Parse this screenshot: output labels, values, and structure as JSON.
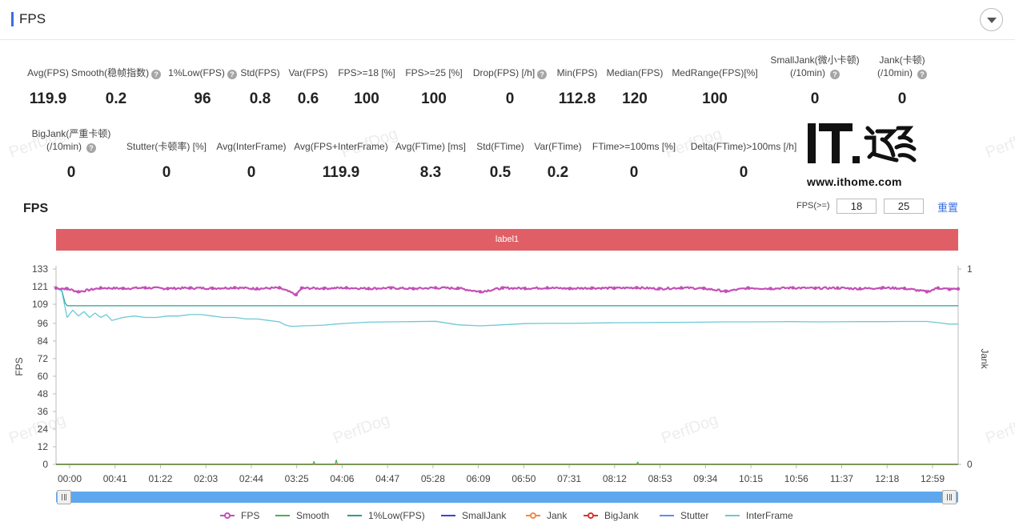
{
  "panel": {
    "title": "FPS"
  },
  "metrics_row1": [
    {
      "label": "Avg(FPS)",
      "value": "119.9"
    },
    {
      "label": "Smooth(稳帧指数)",
      "value": "0.2"
    },
    {
      "label": "1%Low(FPS)",
      "value": "96"
    },
    {
      "label": "Std(FPS)",
      "value": "0.8"
    },
    {
      "label": "Var(FPS)",
      "value": "0.6"
    },
    {
      "label": "FPS>=18 [%]",
      "value": "100"
    },
    {
      "label": "FPS>=25 [%]",
      "value": "100"
    },
    {
      "label": "Drop(FPS) [/h]",
      "value": "0"
    },
    {
      "label": "Min(FPS)",
      "value": "112.8"
    },
    {
      "label": "Median(FPS)",
      "value": "120"
    },
    {
      "label": "MedRange(FPS)[%]",
      "value": "100"
    },
    {
      "label": "SmallJank(微小卡顿)",
      "label2": "(/10min)",
      "value": "0"
    },
    {
      "label": "Jank(卡顿)",
      "label2": "(/10min)",
      "value": "0"
    }
  ],
  "metrics_row2": [
    {
      "label": "BigJank(严重卡顿)",
      "label2": "(/10min)",
      "value": "0"
    },
    {
      "label": "Stutter(卡顿率) [%]",
      "value": "0"
    },
    {
      "label": "Avg(InterFrame)",
      "value": "0"
    },
    {
      "label": "Avg(FPS+InterFrame)",
      "value": "119.9"
    },
    {
      "label": "Avg(FTime) [ms]",
      "value": "8.3"
    },
    {
      "label": "Std(FTime)",
      "value": "0.5"
    },
    {
      "label": "Var(FTime)",
      "value": "0.2"
    },
    {
      "label": "FTime>=100ms [%]",
      "value": "0"
    },
    {
      "label": "Delta(FTime)>100ms [/h]",
      "value": "0"
    }
  ],
  "help_icon": "?",
  "watermark": "PerfDog",
  "logo": {
    "text": "IT之家",
    "url": "www.ithome.com"
  },
  "chart_header": {
    "title": "FPS",
    "threshold_label": "FPS(>=)",
    "threshold_1": "18",
    "threshold_2": "25",
    "reset_label": "重置"
  },
  "label_band": "label1",
  "colors": {
    "fps": "#c44fb7",
    "smooth": "#4caf50",
    "low1": "#2a9d8f",
    "smalljank": "#3f3fd9",
    "jank": "#f08a4b",
    "bigjank": "#d9342b",
    "stutter": "#5b8ff0",
    "interframe": "#6cc9d6",
    "label_band": "#e05f66",
    "slider": "#5ea7ef"
  },
  "chart_data": {
    "type": "line",
    "title": "",
    "xlabel": "",
    "ylabel": "FPS",
    "y2label": "Jank",
    "ylim": [
      0,
      133
    ],
    "y2lim": [
      0,
      1
    ],
    "yticks": [
      0,
      12,
      24,
      36,
      48,
      60,
      72,
      84,
      96,
      109,
      121,
      133
    ],
    "y2ticks": [
      0,
      1
    ],
    "x_range_seconds": [
      0,
      808
    ],
    "xticks": [
      "00:00",
      "00:41",
      "01:22",
      "02:03",
      "02:44",
      "03:25",
      "04:06",
      "04:47",
      "05:28",
      "06:09",
      "06:50",
      "07:31",
      "08:12",
      "08:53",
      "09:34",
      "10:15",
      "10:56",
      "11:37",
      "12:18",
      "12:59"
    ],
    "grid": false,
    "legend_position": "bottom",
    "series": [
      {
        "name": "FPS",
        "x_seconds": [
          0,
          10,
          20,
          40,
          60,
          80,
          100,
          120,
          140,
          160,
          180,
          200,
          215,
          220,
          240,
          260,
          280,
          300,
          320,
          340,
          360,
          380,
          400,
          420,
          440,
          460,
          480,
          500,
          520,
          540,
          560,
          580,
          600,
          620,
          640,
          660,
          680,
          700,
          720,
          740,
          760,
          780,
          790,
          800,
          808
        ],
        "values": [
          120,
          119.6,
          117.5,
          120.1,
          119.8,
          120.2,
          119.7,
          120.1,
          119.9,
          120.3,
          119.6,
          120.2,
          115.5,
          120.0,
          119.8,
          120.2,
          119.7,
          120.1,
          119.6,
          120.2,
          119.9,
          117.5,
          120.1,
          119.8,
          120.2,
          119.7,
          120.1,
          119.9,
          120.3,
          119.6,
          120.2,
          119.8,
          117.8,
          120.1,
          119.7,
          120.2,
          119.9,
          120.1,
          119.6,
          120.2,
          119.8,
          117.5,
          120.1,
          119.2,
          119.5
        ]
      },
      {
        "name": "InterFrame",
        "x_seconds": [
          0,
          5,
          10,
          15,
          20,
          25,
          30,
          35,
          40,
          45,
          50,
          60,
          70,
          80,
          90,
          100,
          110,
          120,
          130,
          140,
          150,
          160,
          170,
          180,
          190,
          200,
          205,
          210,
          215,
          220,
          230,
          240,
          250,
          260,
          280,
          300,
          320,
          340,
          360,
          380,
          400,
          420,
          440,
          460,
          480,
          500,
          520,
          540,
          560,
          580,
          600,
          620,
          640,
          660,
          680,
          700,
          720,
          740,
          760,
          780,
          790,
          800,
          808
        ],
        "values": [
          120,
          118,
          100,
          105,
          101,
          104,
          100,
          103,
          100,
          102,
          98,
          100,
          101,
          100,
          100,
          101,
          101,
          102,
          102,
          101,
          100,
          100,
          99,
          99,
          98,
          97,
          95,
          94,
          94,
          94.3,
          94.5,
          94.8,
          95.5,
          96,
          96.8,
          97,
          97.2,
          97.4,
          95,
          94.3,
          95,
          95.8,
          96,
          96,
          96.2,
          96.4,
          96.5,
          96.6,
          96.7,
          96.8,
          97,
          97,
          97.1,
          97.2,
          97,
          97.1,
          97.2,
          97.2,
          97.3,
          97.3,
          96.5,
          95.5,
          95.5
        ]
      },
      {
        "name": "1%Low(FPS)",
        "x_seconds": [
          0,
          5,
          8,
          10,
          14,
          20,
          30,
          40,
          60,
          100,
          200,
          400,
          600,
          808
        ],
        "values": [
          120,
          119,
          110,
          108,
          108,
          108,
          108,
          108,
          108,
          108,
          108,
          108,
          108,
          108
        ]
      },
      {
        "name": "Smooth",
        "x_seconds": [
          0,
          200,
          210,
          230,
          231,
          232,
          240,
          250,
          251,
          252,
          300,
          480,
          520,
          521,
          522,
          560,
          808
        ],
        "values": [
          0,
          0,
          0,
          0,
          2,
          0,
          0,
          0,
          3,
          0,
          0,
          0,
          0,
          1.5,
          0,
          0,
          0
        ]
      },
      {
        "name": "SmallJank",
        "x_seconds": [
          0,
          808
        ],
        "values": [
          0,
          0
        ]
      },
      {
        "name": "Jank",
        "x_seconds": [
          0,
          808
        ],
        "values": [
          0,
          0
        ]
      },
      {
        "name": "BigJank",
        "x_seconds": [
          0,
          808
        ],
        "values": [
          0,
          0
        ]
      },
      {
        "name": "Stutter",
        "x_seconds": [
          0,
          808
        ],
        "values": [
          0,
          0
        ]
      }
    ],
    "legend": [
      "FPS",
      "Smooth",
      "1%Low(FPS)",
      "SmallJank",
      "Jank",
      "BigJank",
      "Stutter",
      "InterFrame"
    ]
  }
}
